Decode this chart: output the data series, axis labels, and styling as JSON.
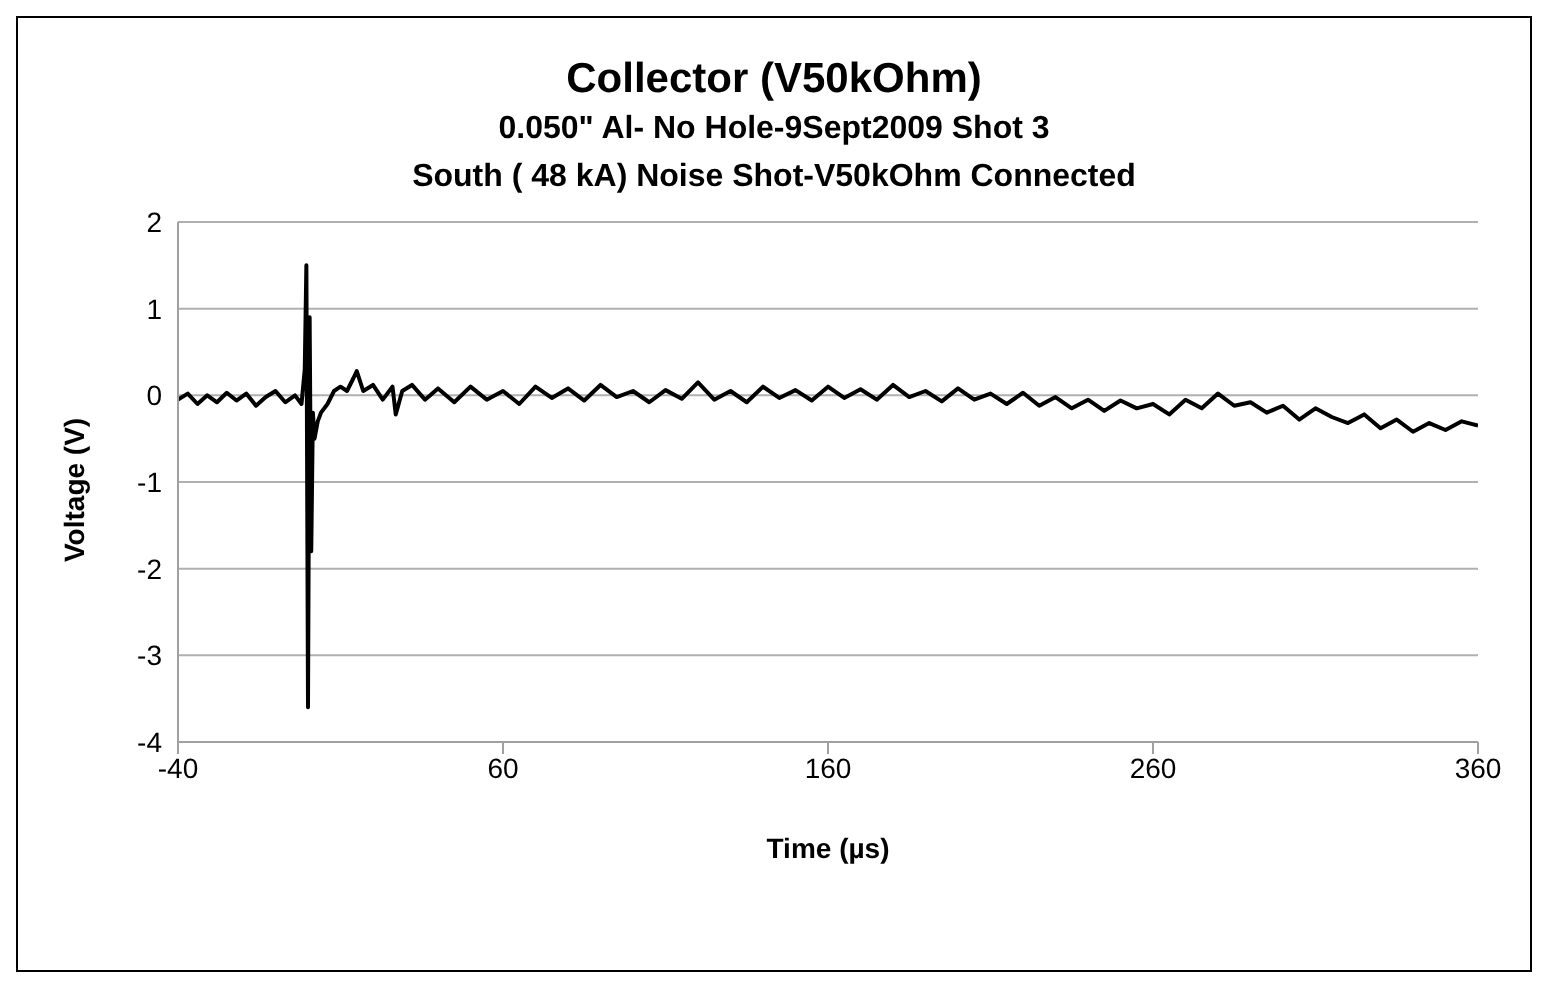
{
  "chart_data": {
    "type": "line",
    "title": "Collector (V50kOhm)",
    "subtitle": "0.050\" Al- No Hole-9Sept2009 Shot 3\nSouth ( 48 kA) Noise Shot-V50kOhm Connected",
    "xlabel": "Time (µs)",
    "ylabel": "Voltage (V)",
    "series": [
      {
        "color": "#000000",
        "x": [
          -40,
          -37,
          -34,
          -31,
          -28,
          -25,
          -22,
          -19,
          -16,
          -13,
          -10,
          -7,
          -4,
          -2,
          -1,
          -0.5,
          0,
          0.5,
          1,
          1.5,
          2,
          3,
          4,
          6,
          8,
          10,
          12,
          14,
          15,
          17,
          20,
          23,
          26,
          27,
          29,
          32,
          36,
          40,
          45,
          50,
          55,
          60,
          65,
          70,
          75,
          80,
          85,
          90,
          95,
          100,
          105,
          110,
          115,
          120,
          125,
          130,
          135,
          140,
          145,
          150,
          155,
          160,
          165,
          170,
          175,
          180,
          185,
          190,
          195,
          200,
          205,
          210,
          215,
          220,
          225,
          230,
          235,
          240,
          245,
          250,
          255,
          260,
          265,
          270,
          275,
          280,
          285,
          290,
          295,
          300,
          305,
          310,
          315,
          320,
          325,
          330,
          335,
          340,
          345,
          350,
          355,
          360
        ],
        "values": [
          -0.05,
          0.02,
          -0.1,
          0.0,
          -0.08,
          0.03,
          -0.06,
          0.02,
          -0.12,
          -0.02,
          0.05,
          -0.08,
          0.0,
          -0.1,
          0.3,
          1.5,
          -3.6,
          0.9,
          -1.8,
          -0.2,
          -0.5,
          -0.3,
          -0.2,
          -0.1,
          0.05,
          0.1,
          0.05,
          0.2,
          0.28,
          0.05,
          0.12,
          -0.05,
          0.1,
          -0.22,
          0.05,
          0.12,
          -0.05,
          0.08,
          -0.08,
          0.1,
          -0.05,
          0.05,
          -0.1,
          0.1,
          -0.03,
          0.08,
          -0.06,
          0.12,
          -0.02,
          0.05,
          -0.08,
          0.06,
          -0.04,
          0.15,
          -0.05,
          0.05,
          -0.08,
          0.1,
          -0.03,
          0.06,
          -0.06,
          0.1,
          -0.03,
          0.07,
          -0.05,
          0.12,
          -0.02,
          0.05,
          -0.07,
          0.08,
          -0.05,
          0.02,
          -0.1,
          0.03,
          -0.12,
          -0.02,
          -0.15,
          -0.05,
          -0.18,
          -0.06,
          -0.15,
          -0.1,
          -0.22,
          -0.05,
          -0.15,
          0.02,
          -0.12,
          -0.08,
          -0.2,
          -0.12,
          -0.28,
          -0.15,
          -0.25,
          -0.32,
          -0.22,
          -0.38,
          -0.28,
          -0.42,
          -0.32,
          -0.4,
          -0.3,
          -0.35
        ]
      }
    ],
    "xlim": [
      -40,
      360
    ],
    "xticks": [
      -40,
      60,
      160,
      260,
      360
    ],
    "ylim": [
      -4,
      2
    ],
    "yticks": [
      -4,
      -3,
      -2,
      -1,
      0,
      1,
      2
    ],
    "grid": "y",
    "legend": false,
    "marker": "none",
    "line_style": "solid"
  }
}
